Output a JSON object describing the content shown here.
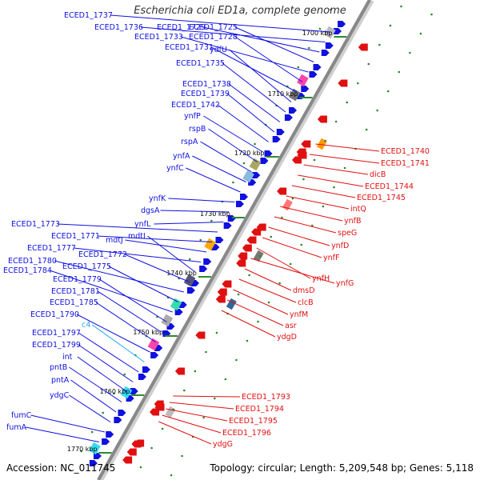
{
  "title": "Escherichia coli ED1a, complete genome",
  "footer": {
    "accession": "Accession: NC_011745",
    "summary": "Topology: circular; Length: 5,209,548 bp; Genes: 5,118"
  },
  "colors": {
    "forward": "#1010e0",
    "reverse": "#e01010",
    "highlight": "#22aaee",
    "backbone": "#888888",
    "tick": "#2a8a2a"
  },
  "ticks": [
    "1700 kbp",
    "1710 kbp",
    "1720 kbp",
    "1730 kbp",
    "1740 kbp",
    "1750 kbp",
    "1760 kbp",
    "1770 kbp"
  ],
  "forward_labels": [
    "ECED1_1737",
    "ECED1_1736",
    "ECED1_1729",
    "ECED1_1725",
    "ECED1_1733",
    "ECED1_1728",
    "ECED1_1731",
    "ydfU",
    "ECED1_1735",
    "ECED1_1738",
    "ECED1_1739",
    "ECED1_1742",
    "ynfP",
    "rspB",
    "rspA",
    "ynfA",
    "ynfC",
    "ynfK",
    "dgsA",
    "ynfL",
    "ECED1_1773",
    "ECED1_1771",
    "mdtJ",
    "ECED1_1777",
    "mdtI",
    "ECED1_1772",
    "ECED1_1780",
    "ECED1_1775",
    "ECED1_1784",
    "ECED1_1779",
    "ECED1_1781",
    "ECED1_1785",
    "ECED1_1790",
    "c4",
    "ECED1_1797",
    "ECED1_1799",
    "int",
    "pntB",
    "pntA",
    "ydgC",
    "fumC",
    "fumA"
  ],
  "reverse_labels": [
    "ECED1_1740",
    "ECED1_1741",
    "dicB",
    "ECED1_1744",
    "ECED1_1745",
    "intQ",
    "ynfB",
    "speG",
    "ynfD",
    "ynfF",
    "ynfH",
    "ynfG",
    "dmsD",
    "clcB",
    "ynfM",
    "asr",
    "ydgD",
    "ECED1_1793",
    "ECED1_1794",
    "ECED1_1795",
    "ECED1_1796",
    "ydgG"
  ]
}
